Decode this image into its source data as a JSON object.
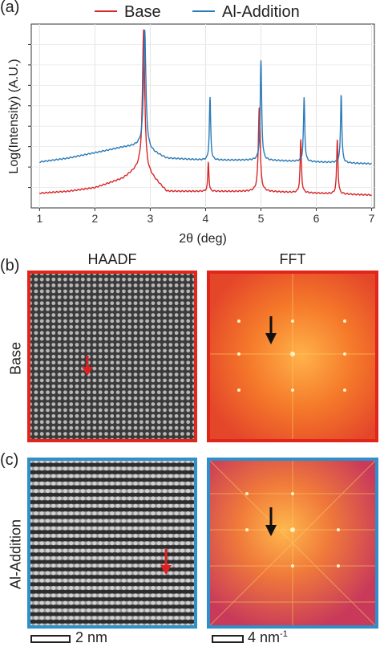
{
  "panels": {
    "a_label": "(a)",
    "b_label": "(b)",
    "c_label": "(c)"
  },
  "chart_data": {
    "type": "line",
    "xlabel": "2θ (deg)",
    "ylabel": "Log(Intensity) (A.U.)",
    "xlim": [
      0.85,
      7.05
    ],
    "ylim": [
      0,
      1
    ],
    "x_ticks": [
      "1",
      "2",
      "3",
      "4",
      "5",
      "6",
      "7"
    ],
    "grid": true,
    "legend_position": "top",
    "series": [
      {
        "name": "Base",
        "color": "#d62728",
        "baseline": [
          [
            1.0,
            0.08
          ],
          [
            1.5,
            0.09
          ],
          [
            2.0,
            0.11
          ],
          [
            2.5,
            0.16
          ],
          [
            2.8,
            0.22
          ],
          [
            3.0,
            0.18
          ],
          [
            3.3,
            0.09
          ],
          [
            4.0,
            0.09
          ],
          [
            5.0,
            0.09
          ],
          [
            6.0,
            0.08
          ],
          [
            7.0,
            0.07
          ]
        ],
        "peaks": [
          {
            "x": 2.88,
            "h": 0.97,
            "w": 0.025
          },
          {
            "x": 4.05,
            "h": 0.25,
            "w": 0.012
          },
          {
            "x": 4.97,
            "h": 0.55,
            "w": 0.02
          },
          {
            "x": 5.72,
            "h": 0.37,
            "w": 0.014
          },
          {
            "x": 6.38,
            "h": 0.37,
            "w": 0.014
          }
        ]
      },
      {
        "name": "Al-Addition",
        "color": "#2a7ab8",
        "baseline": [
          [
            1.0,
            0.25
          ],
          [
            1.5,
            0.27
          ],
          [
            2.0,
            0.3
          ],
          [
            2.5,
            0.33
          ],
          [
            2.8,
            0.34
          ],
          [
            3.0,
            0.31
          ],
          [
            3.3,
            0.27
          ],
          [
            4.0,
            0.26
          ],
          [
            5.0,
            0.26
          ],
          [
            6.0,
            0.25
          ],
          [
            7.0,
            0.24
          ]
        ],
        "peaks": [
          {
            "x": 2.9,
            "h": 0.97,
            "w": 0.025
          },
          {
            "x": 4.08,
            "h": 0.6,
            "w": 0.014
          },
          {
            "x": 5.0,
            "h": 0.8,
            "w": 0.016
          },
          {
            "x": 5.78,
            "h": 0.6,
            "w": 0.014
          },
          {
            "x": 6.45,
            "h": 0.62,
            "w": 0.014
          }
        ]
      }
    ]
  },
  "images": {
    "col_haadf": "HAADF",
    "col_fft": "FFT",
    "row_base": "Base",
    "row_al": "Al-Addition",
    "frame_base_color": "#e0251b",
    "frame_al_color": "#2f8fc8",
    "arrow_haadf_color": "#e02020",
    "arrow_fft_color": "#111111",
    "scale_real": "2 nm",
    "scale_recip_value": "4 nm",
    "scale_recip_exp": "-1"
  }
}
